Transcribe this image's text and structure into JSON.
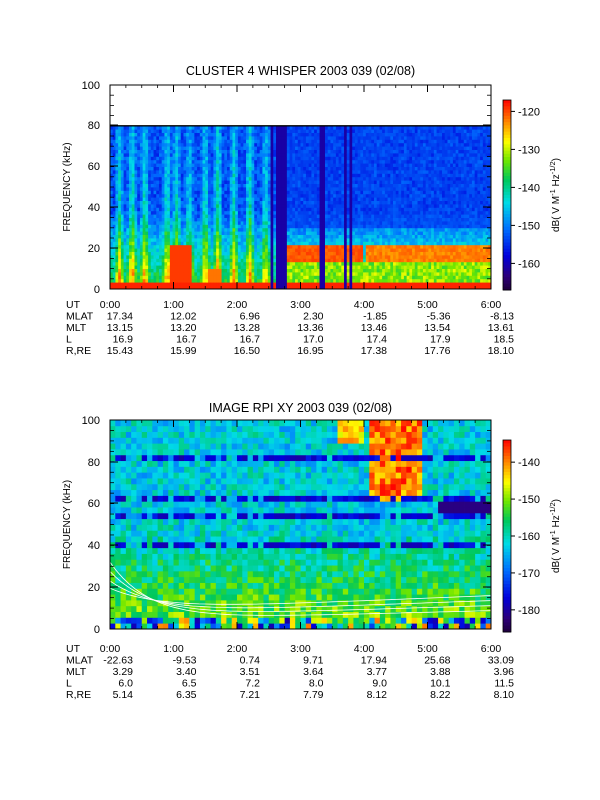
{
  "chart_data": [
    {
      "type": "heatmap",
      "title": "CLUSTER 4 WHISPER 2003 039 (02/08)",
      "ylabel": "FREQUENCY (kHz)",
      "y_ticks": [
        "0",
        "20",
        "40",
        "60",
        "80",
        "100"
      ],
      "ylim": [
        0,
        100
      ],
      "xlim_hours": [
        0,
        6
      ],
      "colorbar": {
        "ticks": [
          "-120",
          "-130",
          "-140",
          "-150",
          "-160"
        ],
        "range": [
          -167,
          -117
        ]
      },
      "colorbar_label": "dB( V M",
      "colorbar_label_sup": "-1",
      "colorbar_label_mid": " Hz",
      "colorbar_label_sup2": "-1/2",
      "colorbar_label_end": ")",
      "data_ceiling_khz": 80,
      "ephemeris": {
        "labels": [
          "UT",
          "MLAT",
          "MLT",
          "L",
          "R,RE"
        ],
        "columns": [
          [
            "0:00",
            "17.34",
            "13.15",
            "16.9",
            "15.43"
          ],
          [
            "1:00",
            "12.02",
            "13.20",
            "16.7",
            "15.99"
          ],
          [
            "2:00",
            "6.96",
            "13.28",
            "16.7",
            "16.50"
          ],
          [
            "3:00",
            "2.30",
            "13.36",
            "17.0",
            "16.95"
          ],
          [
            "4:00",
            "-1.85",
            "13.46",
            "17.4",
            "17.38"
          ],
          [
            "5:00",
            "-5.36",
            "13.54",
            "17.9",
            "17.76"
          ],
          [
            "6:00",
            "-8.13",
            "13.61",
            "18.5",
            "18.10"
          ]
        ]
      }
    },
    {
      "type": "heatmap",
      "title": "IMAGE RPI XY 2003 039 (02/08)",
      "ylabel": "FREQUENCY (kHz)",
      "y_ticks": [
        "0",
        "20",
        "40",
        "60",
        "80",
        "100"
      ],
      "ylim": [
        0,
        100
      ],
      "xlim_hours": [
        0,
        6
      ],
      "colorbar": {
        "ticks": [
          "-140",
          "-150",
          "-160",
          "-170",
          "-180"
        ],
        "range": [
          -186,
          -134
        ]
      },
      "colorbar_label": "dB( V M",
      "colorbar_label_sup": "-1",
      "colorbar_label_mid": " Hz",
      "colorbar_label_sup2": "-1/2",
      "colorbar_label_end": ")",
      "ephemeris": {
        "labels": [
          "UT",
          "MLAT",
          "MLT",
          "L",
          "R,RE"
        ],
        "columns": [
          [
            "0:00",
            "-22.63",
            "3.29",
            "6.0",
            "5.14"
          ],
          [
            "1:00",
            "-9.53",
            "3.40",
            "6.5",
            "6.35"
          ],
          [
            "2:00",
            "0.74",
            "3.51",
            "7.2",
            "7.21"
          ],
          [
            "3:00",
            "9.71",
            "3.64",
            "8.0",
            "7.79"
          ],
          [
            "4:00",
            "17.94",
            "3.77",
            "9.0",
            "8.12"
          ],
          [
            "5:00",
            "25.68",
            "3.88",
            "10.1",
            "8.22"
          ],
          [
            "6:00",
            "33.09",
            "3.96",
            "11.5",
            "8.10"
          ]
        ]
      }
    }
  ]
}
